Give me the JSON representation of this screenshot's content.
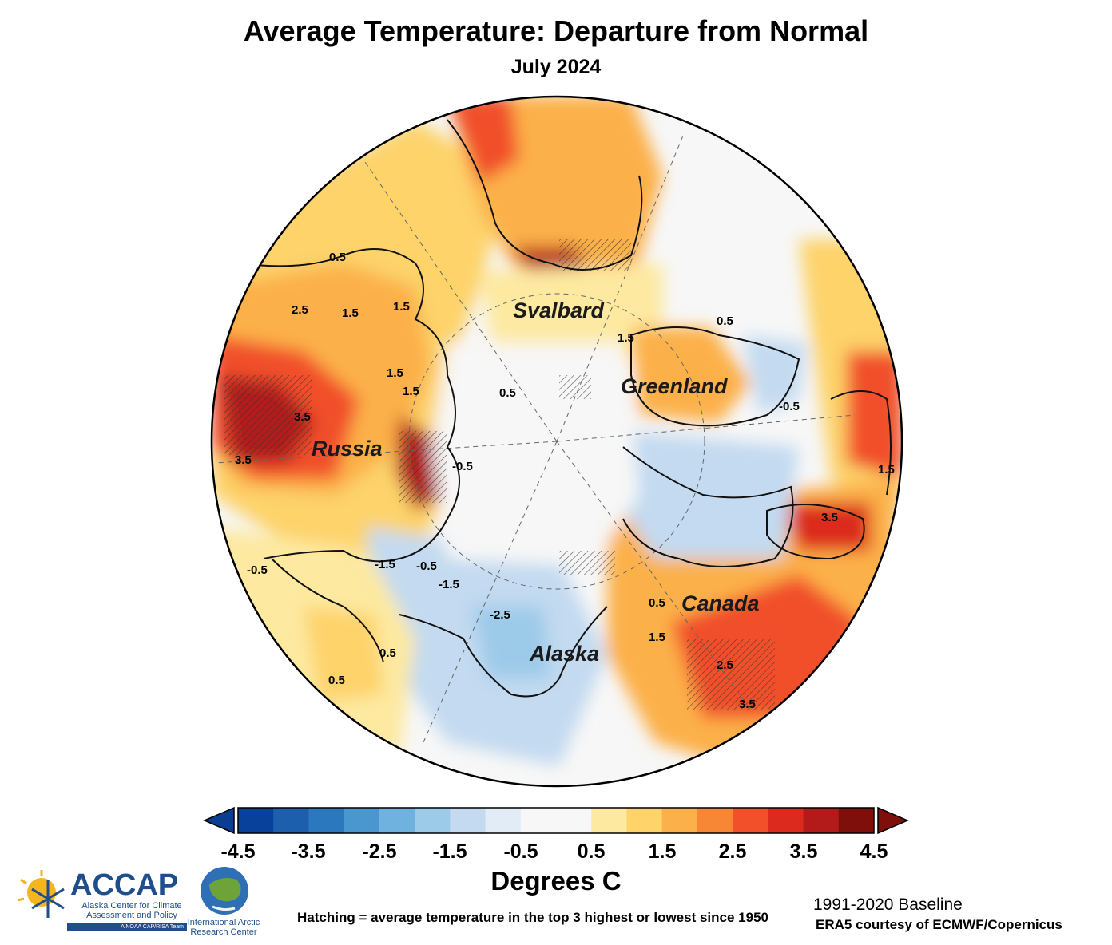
{
  "title": "Average Temperature: Departure from Normal",
  "subtitle": "July 2024",
  "regions": [
    "Svalbard",
    "Greenland",
    "Russia",
    "Canada",
    "Alaska"
  ],
  "contour_labels": [
    "0.5",
    "1.5",
    "2.5",
    "3.5",
    "-0.5",
    "-1.5",
    "-2.5"
  ],
  "colorbar": {
    "ticks": [
      "-4.5",
      "-3.5",
      "-2.5",
      "-1.5",
      "-0.5",
      "0.5",
      "1.5",
      "2.5",
      "3.5",
      "4.5"
    ],
    "colors": [
      "#08419b",
      "#1c60ad",
      "#2c78bf",
      "#4a97d0",
      "#6fb1df",
      "#9ccbe9",
      "#c3daf0",
      "#e1ecf7",
      "#f7f7f7",
      "#f7f7f7",
      "#fde9a0",
      "#fdd36a",
      "#fcb04a",
      "#f88735",
      "#f1502a",
      "#dc2a1f",
      "#b31a1a",
      "#7e0f0b"
    ],
    "under_color": "#0b3d91",
    "over_color": "#7e0f0b",
    "units": "Degrees C"
  },
  "hatching_note": "Hatching = average temperature in the top 3 highest or lowest since 1950",
  "baseline": "1991-2020 Baseline",
  "credit": "ERA5 courtesy of ECMWF/Copernicus",
  "logos": {
    "accap_name": "ACCAP",
    "accap_subtitle": "Alaska Center for Climate Assessment and Policy",
    "accap_team": "A NOAA CAP/RISA Team",
    "iarc_name": "International Arctic Research Center"
  }
}
